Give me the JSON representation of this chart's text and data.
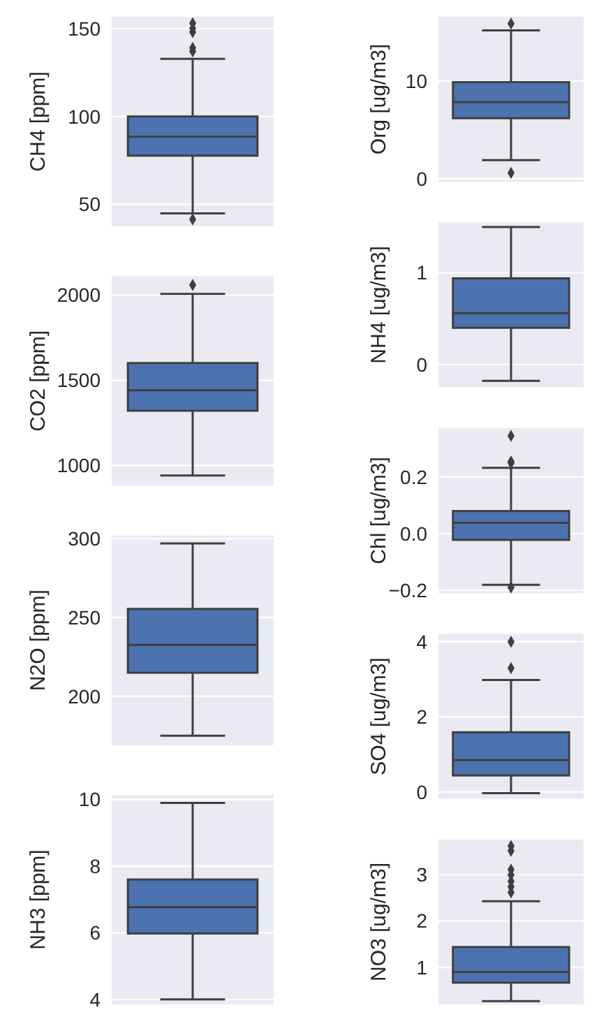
{
  "chart_data": [
    {
      "type": "box",
      "ylabel": "CH4 [ppm]",
      "categories": [
        null
      ],
      "color": "#4c72b0",
      "grid": "y",
      "ylim": [
        37.5,
        156.7
      ],
      "yticks": [
        50,
        100,
        150
      ],
      "boxes": [
        {
          "low": 44.9,
          "q1": 77.7,
          "median": 88.5,
          "q3": 100,
          "high": 132.8,
          "outliers": [
            153,
            150,
            148,
            139,
            137,
            41.5
          ]
        }
      ]
    },
    {
      "type": "box",
      "ylabel": "CO2 [ppm]",
      "categories": [
        null
      ],
      "color": "#4c72b0",
      "grid": "y",
      "ylim": [
        882,
        2112
      ],
      "yticks": [
        1000,
        1500,
        2000
      ],
      "boxes": [
        {
          "low": 942,
          "q1": 1322,
          "median": 1442,
          "q3": 1602,
          "high": 2008,
          "outliers": [
            2060
          ]
        }
      ]
    },
    {
      "type": "box",
      "ylabel": "N2O [ppm]",
      "categories": [
        null
      ],
      "color": "#4c72b0",
      "grid": "y",
      "ylim": [
        169,
        302
      ],
      "yticks": [
        200,
        250,
        300
      ],
      "boxes": [
        {
          "low": 174.9,
          "q1": 214.9,
          "median": 232.6,
          "q3": 255.4,
          "high": 297
        }
      ]
    },
    {
      "type": "box",
      "ylabel": "NH3 [ppm]",
      "categories": [
        null
      ],
      "color": "#4c72b0",
      "grid": "y",
      "ylim": [
        3.85,
        10.14
      ],
      "yticks": [
        4,
        6,
        8,
        10
      ],
      "boxes": [
        {
          "low": 4.0,
          "q1": 5.98,
          "median": 6.77,
          "q3": 7.6,
          "high": 9.9
        }
      ]
    },
    {
      "type": "box",
      "ylabel": "Org [ug/m3]",
      "categories": [
        null
      ],
      "color": "#4c72b0",
      "grid": "y",
      "ylim": [
        -0.3,
        16.6
      ],
      "yticks": [
        0,
        10
      ],
      "boxes": [
        {
          "low": 1.9,
          "q1": 6.2,
          "median": 7.85,
          "q3": 9.9,
          "high": 15.2,
          "outliers": [
            15.9,
            0.6
          ]
        }
      ]
    },
    {
      "type": "box",
      "ylabel": "NH4 [ug/m3]",
      "categories": [
        null
      ],
      "color": "#4c72b0",
      "grid": "y",
      "ylim": [
        -0.25,
        1.55
      ],
      "yticks": [
        0,
        1
      ],
      "boxes": [
        {
          "low": -0.18,
          "q1": 0.4,
          "median": 0.56,
          "q3": 0.94,
          "high": 1.5
        }
      ]
    },
    {
      "type": "box",
      "ylabel": "Chl [ug/m3]",
      "categories": [
        null
      ],
      "color": "#4c72b0",
      "grid": "y",
      "ylim": [
        -0.21,
        0.373
      ],
      "yticks": [
        {
          "value": -0.2,
          "label": "−0.2"
        },
        {
          "value": 0,
          "label": "0.0"
        },
        {
          "value": 0.2,
          "label": "0.2"
        }
      ],
      "boxes": [
        {
          "low": -0.181,
          "q1": -0.022,
          "median": 0.038,
          "q3": 0.08,
          "high": 0.233,
          "outliers": [
            0.346,
            0.255,
            0.25,
            -0.19
          ]
        }
      ]
    },
    {
      "type": "box",
      "ylabel": "SO4 [ug/m3]",
      "categories": [
        null
      ],
      "color": "#4c72b0",
      "grid": "y",
      "ylim": [
        -0.18,
        4.21
      ],
      "yticks": [
        0,
        2,
        4
      ],
      "boxes": [
        {
          "low": -0.03,
          "q1": 0.44,
          "median": 0.85,
          "q3": 1.59,
          "high": 2.98,
          "outliers": [
            4.0,
            3.3
          ]
        }
      ]
    },
    {
      "type": "box",
      "ylabel": "NO3 [ug/m3]",
      "categories": [
        null
      ],
      "color": "#4c72b0",
      "grid": "y",
      "ylim": [
        0.2,
        3.76
      ],
      "yticks": [
        1,
        2,
        3
      ],
      "boxes": [
        {
          "low": 0.27,
          "q1": 0.67,
          "median": 0.9,
          "q3": 1.44,
          "high": 2.43,
          "outliers": [
            3.62,
            3.52,
            3.11,
            3.0,
            2.86,
            2.74,
            2.62
          ]
        }
      ]
    }
  ]
}
